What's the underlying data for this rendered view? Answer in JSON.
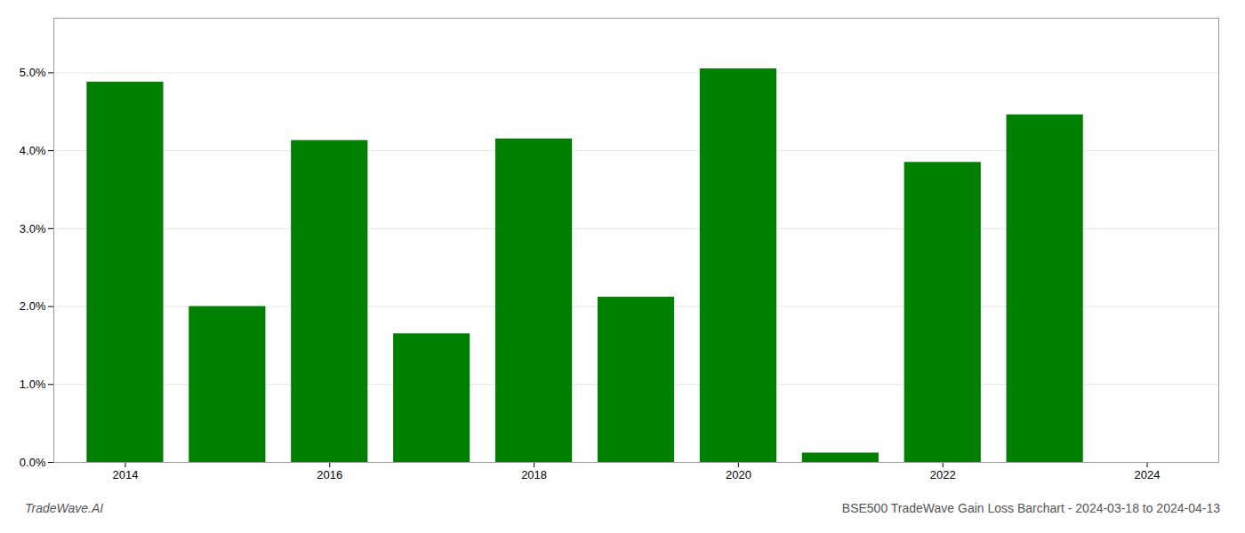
{
  "chart_data": {
    "type": "bar",
    "title": "BSE500 TradeWave Gain Loss Barchart - 2024-03-18 to 2024-04-13",
    "annotations": [
      "TradeWave.AI"
    ],
    "x": [
      2014,
      2015,
      2016,
      2017,
      2018,
      2019,
      2020,
      2021,
      2022,
      2023
    ],
    "values": [
      0.0488,
      0.02,
      0.0413,
      0.0165,
      0.0415,
      0.0212,
      0.0505,
      0.0012,
      0.0385,
      0.0446
    ],
    "color": "#008000",
    "xlim": [
      2013.3,
      2024.7
    ],
    "xticks": [
      2014,
      2016,
      2018,
      2020,
      2022,
      2024
    ],
    "ylim": [
      0,
      0.057
    ],
    "yticks": [
      {
        "value": 0.0,
        "label": "0.0%"
      },
      {
        "value": 0.01,
        "label": "1.0%"
      },
      {
        "value": 0.02,
        "label": "2.0%"
      },
      {
        "value": 0.03,
        "label": "3.0%"
      },
      {
        "value": 0.04,
        "label": "4.0%"
      },
      {
        "value": 0.05,
        "label": "5.0%"
      }
    ],
    "grid": true
  }
}
